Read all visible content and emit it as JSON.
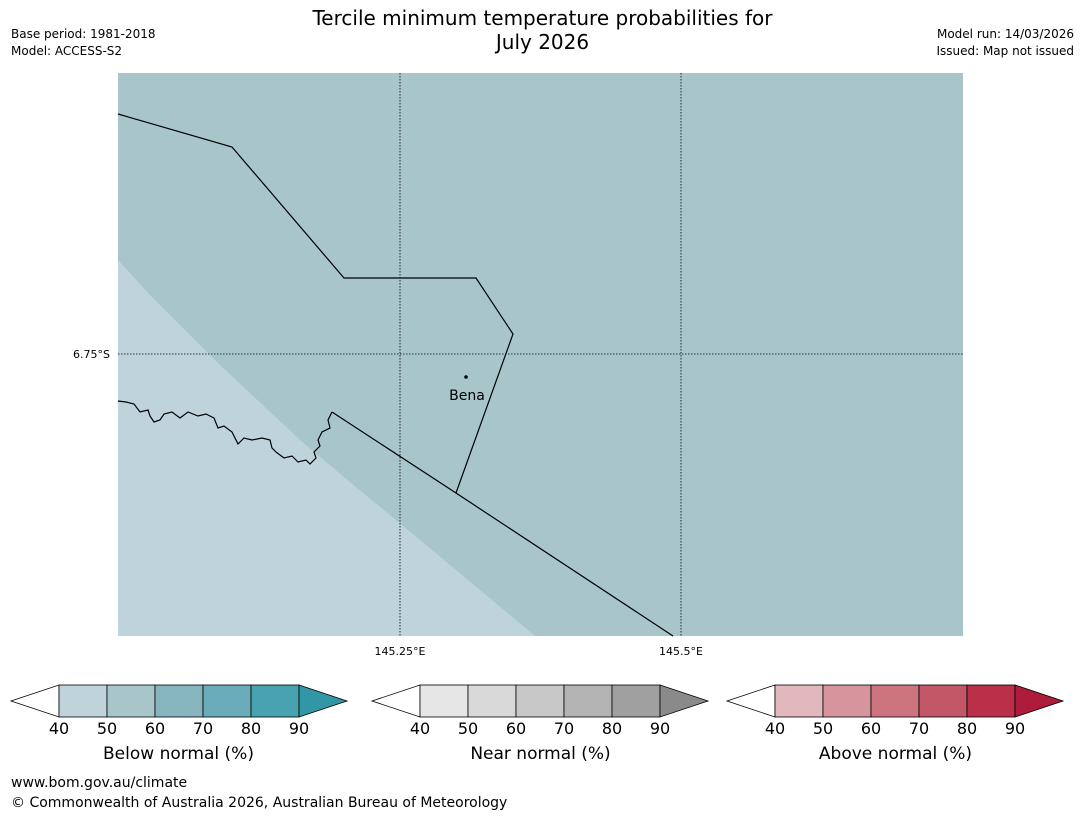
{
  "title": {
    "line1": "Tercile minimum temperature probabilities for",
    "line2": "July 2026"
  },
  "meta_left": {
    "base_period": "Base period: 1981-2018",
    "model": "Model: ACCESS-S2"
  },
  "meta_right": {
    "model_run": "Model run: 14/03/2026",
    "issued": "Issued: Map not issued"
  },
  "map": {
    "lat_label": "6.75°S",
    "lon_labels": [
      "145.25°E",
      "145.5°E"
    ],
    "place_name": "Bena",
    "colors": {
      "region_main": "#a8c6ca",
      "region_light": "#bfd4da",
      "border": "#000000"
    }
  },
  "legends": [
    {
      "name": "below",
      "label": "Below normal (%)",
      "ticks": [
        "40",
        "50",
        "60",
        "70",
        "80",
        "90"
      ],
      "colors": [
        "#ffffff",
        "#bfd4da",
        "#a8c6ca",
        "#87b5bd",
        "#6aacb9",
        "#49a2b0",
        "#3197a6"
      ]
    },
    {
      "name": "near",
      "label": "Near normal (%)",
      "ticks": [
        "40",
        "50",
        "60",
        "70",
        "80",
        "90"
      ],
      "colors": [
        "#ffffff",
        "#e6e6e6",
        "#d9d9d9",
        "#c8c8c8",
        "#b4b4b4",
        "#a0a0a0",
        "#8a8a8a"
      ]
    },
    {
      "name": "above",
      "label": "Above normal (%)",
      "ticks": [
        "40",
        "50",
        "60",
        "70",
        "80",
        "90"
      ],
      "colors": [
        "#ffffff",
        "#e2b8bd",
        "#d6959c",
        "#cc757f",
        "#c25767",
        "#bb3049",
        "#ae1c3b"
      ]
    }
  ],
  "footer": {
    "url": "www.bom.gov.au/climate",
    "copyright": "© Commonwealth of Australia 2026, Australian Bureau of Meteorology"
  }
}
